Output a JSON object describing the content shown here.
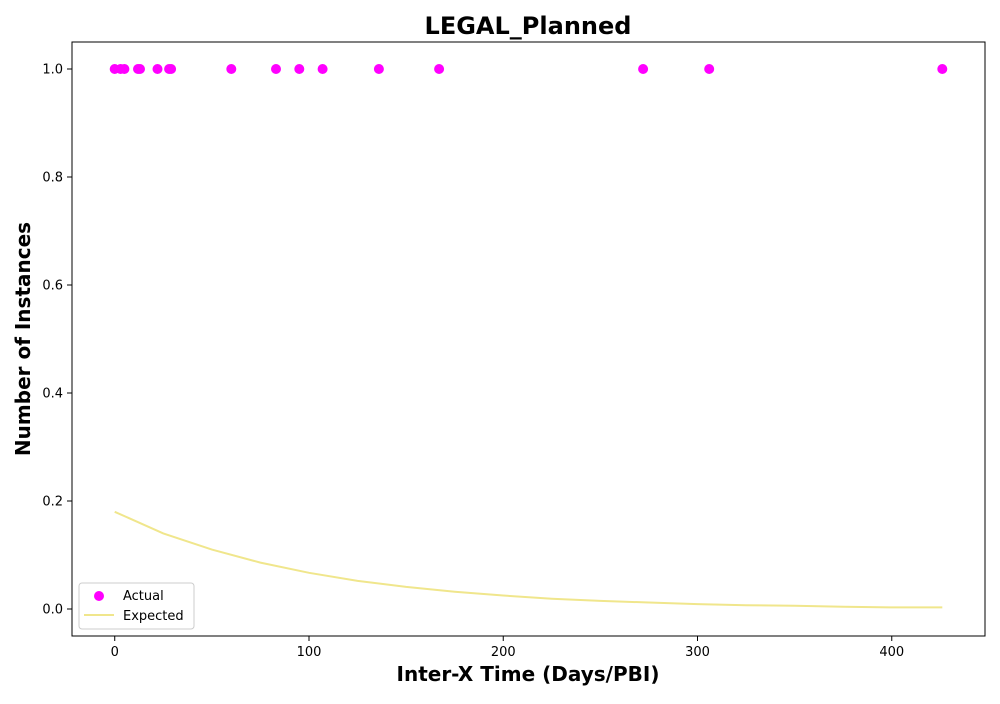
{
  "chart_data": {
    "type": "scatter",
    "title": "LEGAL_Planned",
    "xlabel": "Inter-X Time (Days/PBI)",
    "ylabel": "Number of Instances",
    "xlim": [
      -22,
      448
    ],
    "ylim": [
      -0.05,
      1.05
    ],
    "xticks": [
      0,
      100,
      200,
      300,
      400
    ],
    "yticks": [
      0.0,
      0.2,
      0.4,
      0.6,
      0.8,
      1.0
    ],
    "xtick_labels": [
      "0",
      "100",
      "200",
      "300",
      "400"
    ],
    "ytick_labels": [
      "0.0",
      "0.2",
      "0.4",
      "0.6",
      "0.8",
      "1.0"
    ],
    "grid": false,
    "legend_position": "lower-left",
    "series": [
      {
        "name": "Actual",
        "kind": "scatter",
        "color": "#ff00ff",
        "x": [
          0,
          3,
          5,
          12,
          13,
          22,
          28,
          29,
          60,
          83,
          95,
          107,
          136,
          167,
          272,
          306,
          426
        ],
        "y": [
          1,
          1,
          1,
          1,
          1,
          1,
          1,
          1,
          1,
          1,
          1,
          1,
          1,
          1,
          1,
          1,
          1
        ]
      },
      {
        "name": "Expected",
        "kind": "line",
        "color": "#f0e68c",
        "x": [
          0,
          25,
          50,
          75,
          100,
          125,
          150,
          175,
          200,
          225,
          250,
          275,
          300,
          325,
          350,
          375,
          400,
          426
        ],
        "y": [
          0.18,
          0.14,
          0.11,
          0.086,
          0.067,
          0.052,
          0.041,
          0.032,
          0.025,
          0.019,
          0.015,
          0.012,
          0.009,
          0.007,
          0.006,
          0.004,
          0.003,
          0.003
        ]
      }
    ]
  }
}
